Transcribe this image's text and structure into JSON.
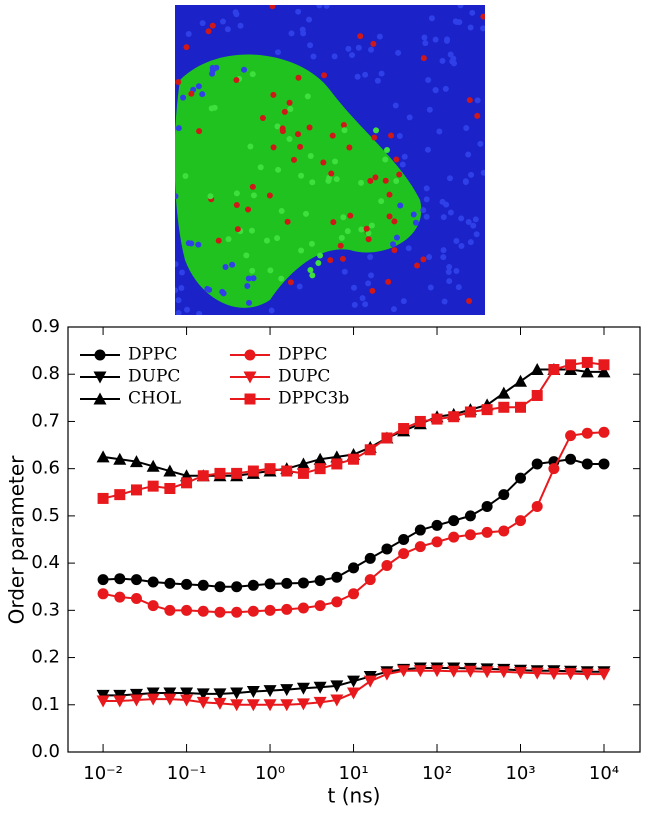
{
  "chart_data": {
    "type": "line",
    "x_label": "t (ns)",
    "y_label": "Order parameter",
    "x": [
      0.01,
      0.01585,
      0.02512,
      0.03981,
      0.0631,
      0.1,
      0.1585,
      0.2512,
      0.3981,
      0.631,
      1,
      1.585,
      2.512,
      3.981,
      6.31,
      10,
      15.85,
      25.12,
      39.81,
      63.1,
      100,
      158.5,
      251.2,
      398.1,
      631,
      1000,
      1585,
      2512,
      3981,
      6310,
      10000
    ],
    "xlim": [
      0.0038,
      27000
    ],
    "log_x": true,
    "xticks": [
      {
        "value": 0.01,
        "label": "10⁻²"
      },
      {
        "value": 0.1,
        "label": "10⁻¹"
      },
      {
        "value": 1,
        "label": "10⁰"
      },
      {
        "value": 10,
        "label": "10¹"
      },
      {
        "value": 100,
        "label": "10²"
      },
      {
        "value": 1000,
        "label": "10³"
      },
      {
        "value": 10000,
        "label": "10⁴"
      }
    ],
    "ylim": [
      0,
      0.9
    ],
    "yticks": [
      {
        "value": 0,
        "label": "0.0"
      },
      0.1,
      0.2,
      0.3,
      0.4,
      0.5,
      0.6,
      0.7,
      0.8,
      0.9
    ],
    "series": [
      {
        "name": "DPPC",
        "color": "#000000",
        "marker": "circle",
        "values": [
          0.365,
          0.367,
          0.365,
          0.36,
          0.357,
          0.355,
          0.353,
          0.35,
          0.35,
          0.353,
          0.356,
          0.357,
          0.358,
          0.363,
          0.37,
          0.39,
          0.41,
          0.43,
          0.45,
          0.47,
          0.48,
          0.49,
          0.5,
          0.52,
          0.545,
          0.58,
          0.61,
          0.615,
          0.62,
          0.61,
          0.61
        ]
      },
      {
        "name": "DUPC",
        "color": "#000000",
        "marker": "down",
        "values": [
          0.12,
          0.12,
          0.122,
          0.125,
          0.125,
          0.125,
          0.123,
          0.123,
          0.125,
          0.128,
          0.13,
          0.132,
          0.135,
          0.137,
          0.14,
          0.15,
          0.16,
          0.17,
          0.175,
          0.178,
          0.178,
          0.178,
          0.177,
          0.176,
          0.175,
          0.173,
          0.172,
          0.172,
          0.171,
          0.17,
          0.17
        ]
      },
      {
        "name": "CHOL",
        "color": "#000000",
        "marker": "up",
        "values": [
          0.625,
          0.62,
          0.615,
          0.605,
          0.595,
          0.585,
          0.585,
          0.585,
          0.585,
          0.59,
          0.595,
          0.6,
          0.61,
          0.62,
          0.625,
          0.63,
          0.645,
          0.665,
          0.68,
          0.695,
          0.71,
          0.715,
          0.725,
          0.735,
          0.76,
          0.785,
          0.81,
          0.81,
          0.81,
          0.805,
          0.805
        ]
      },
      {
        "name": "DPPC",
        "color": "#e8191c",
        "marker": "circle",
        "values": [
          0.335,
          0.328,
          0.325,
          0.31,
          0.3,
          0.3,
          0.298,
          0.296,
          0.296,
          0.298,
          0.3,
          0.302,
          0.305,
          0.31,
          0.318,
          0.335,
          0.365,
          0.395,
          0.42,
          0.435,
          0.445,
          0.455,
          0.46,
          0.465,
          0.468,
          0.49,
          0.52,
          0.6,
          0.67,
          0.675,
          0.677
        ]
      },
      {
        "name": "DUPC",
        "color": "#e8191c",
        "marker": "down",
        "values": [
          0.108,
          0.108,
          0.11,
          0.112,
          0.112,
          0.11,
          0.105,
          0.103,
          0.1,
          0.1,
          0.1,
          0.1,
          0.102,
          0.105,
          0.11,
          0.125,
          0.15,
          0.165,
          0.172,
          0.172,
          0.172,
          0.171,
          0.171,
          0.17,
          0.17,
          0.168,
          0.167,
          0.166,
          0.166,
          0.165,
          0.165
        ]
      },
      {
        "name": "DPPC3b",
        "color": "#e8191c",
        "marker": "square",
        "values": [
          0.537,
          0.545,
          0.555,
          0.563,
          0.558,
          0.57,
          0.585,
          0.59,
          0.59,
          0.595,
          0.6,
          0.595,
          0.59,
          0.6,
          0.61,
          0.62,
          0.64,
          0.665,
          0.685,
          0.7,
          0.705,
          0.71,
          0.72,
          0.725,
          0.73,
          0.73,
          0.755,
          0.81,
          0.82,
          0.825,
          0.82
        ]
      }
    ]
  }
}
